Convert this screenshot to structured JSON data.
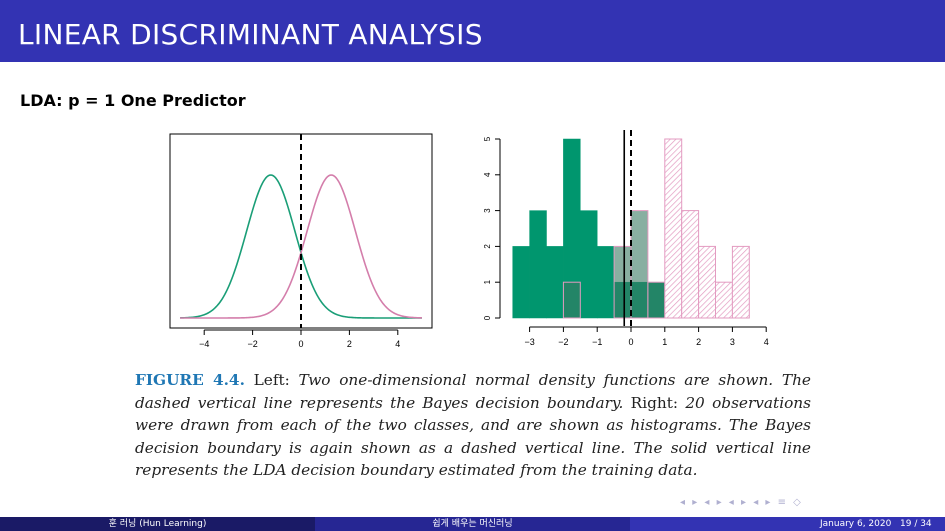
{
  "header": {
    "title": "LINEAR DISCRIMINANT ANALYSIS"
  },
  "frame": {
    "title": "LDA: p = 1 One Predictor"
  },
  "left_plot": {
    "chart_data": {
      "type": "line",
      "series": [
        {
          "mean": -1.25,
          "sd": 1.0,
          "color": "#1a9e77"
        },
        {
          "mean": 1.25,
          "sd": 1.0,
          "color": "#d47eab"
        }
      ],
      "xlim": [
        -5,
        5
      ],
      "xticks": [
        "-4",
        "-2",
        "0",
        "2",
        "4"
      ],
      "bayes_boundary": 0
    }
  },
  "right_plot": {
    "chart_data": {
      "type": "bar",
      "bin_edges": [
        -3.5,
        -3.0,
        -2.5,
        -2.0,
        -1.5,
        -1.0,
        -0.5,
        0.0,
        0.5,
        1.0,
        1.5,
        2.0,
        2.5,
        3.0,
        3.5
      ],
      "series": [
        {
          "color": "#00966e",
          "counts": [
            2,
            3,
            2,
            5,
            3,
            2,
            1,
            1,
            1,
            0,
            0,
            0,
            0,
            0
          ]
        },
        {
          "color": "#e39bc1",
          "counts": [
            0,
            0,
            0,
            1,
            0,
            0,
            2,
            3,
            1,
            5,
            3,
            2,
            1,
            2
          ]
        }
      ],
      "xticks": [
        "-3",
        "-2",
        "-1",
        "0",
        "1",
        "2",
        "3",
        "4"
      ],
      "yticks": [
        "0",
        "1",
        "2",
        "3",
        "4",
        "5"
      ],
      "bayes_boundary": 0,
      "lda_boundary": -0.2
    }
  },
  "caption": {
    "label": "FIGURE 4.4.",
    "left_word": "Left:",
    "text1": "Two one-dimensional normal density functions are shown. The dashed vertical line represents the Bayes decision boundary.",
    "right_word": "Right:",
    "number": "20",
    "text2": "observations were drawn from each of the two classes, and are shown as histograms. The Bayes decision boundary is again shown as a dashed vertical line. The solid vertical line represents the LDA decision boundary estimated from the training data."
  },
  "footer": {
    "author": "훈 러닝 (Hun Learning)",
    "title": "쉽게 배우는 머신러닝",
    "date": "January 6, 2020",
    "page": "19 / 34"
  }
}
